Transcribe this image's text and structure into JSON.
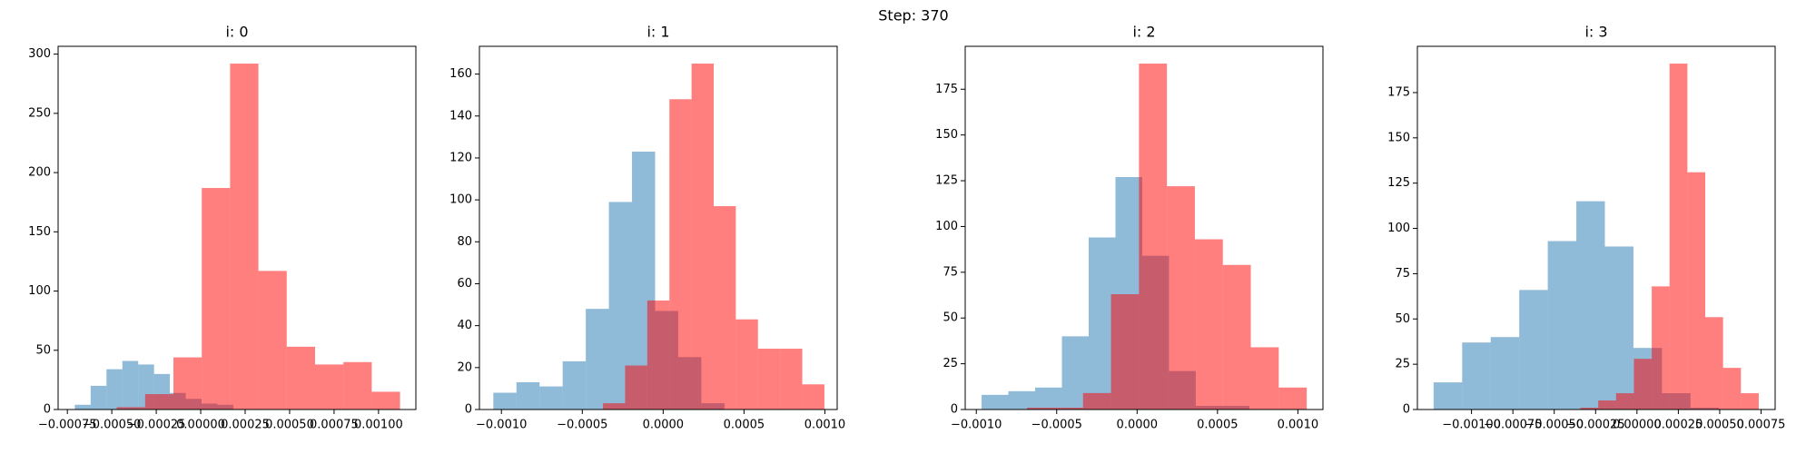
{
  "title": "Step: 370",
  "chart_data": [
    {
      "type": "histogram",
      "title": "i: 0",
      "alpha": 0.5,
      "series": [
        {
          "color": "#1f77b4",
          "bins": [
            -0.000708,
            -0.0006189,
            -0.0005298,
            -0.0004407,
            -0.0003516,
            -0.0002625,
            -0.0001734,
            -8.43e-05,
            4.8e-06,
            9.39e-05,
            0.000183
          ],
          "values": [
            4,
            20,
            34,
            41,
            38,
            30,
            14,
            9,
            5,
            4
          ]
        },
        {
          "color": "red",
          "bins": [
            -0.000472,
            -0.0003127,
            -0.0001534,
            5.9e-06,
            0.0001652,
            0.0003245,
            0.0004838,
            0.0006431,
            0.0008024,
            0.0009617,
            0.001121
          ],
          "values": [
            2,
            13,
            44,
            187,
            292,
            117,
            53,
            38,
            40,
            15
          ]
        }
      ],
      "xlim": [
        -0.000802,
        0.00121
      ],
      "xticks": [
        {
          "value": -0.00075,
          "label": "−0.00075"
        },
        {
          "value": -0.0005,
          "label": "−0.00050"
        },
        {
          "value": -0.00025,
          "label": "−0.00025"
        },
        {
          "value": 0,
          "label": "0.00000"
        },
        {
          "value": 0.00025,
          "label": "0.00025"
        },
        {
          "value": 0.0005,
          "label": "0.00050"
        },
        {
          "value": 0.00075,
          "label": "0.00075"
        },
        {
          "value": 0.001,
          "label": "0.00100"
        }
      ],
      "ylim": [
        0,
        306.6
      ],
      "yticks": [
        0,
        50,
        100,
        150,
        200,
        250,
        300
      ]
    },
    {
      "type": "histogram",
      "title": "i: 1",
      "alpha": 0.5,
      "series": [
        {
          "color": "#1f77b4",
          "bins": [
            -0.00105,
            -0.0009071,
            -0.0007642,
            -0.0006213,
            -0.0004784,
            -0.0003355,
            -0.0001926,
            -4.97e-05,
            9.32e-05,
            0.0002361,
            0.000379
          ],
          "values": [
            8,
            13,
            11,
            23,
            48,
            99,
            123,
            47,
            25,
            3
          ]
        },
        {
          "color": "red",
          "bins": [
            -0.000372,
            -0.0002351,
            -9.82e-05,
            3.87e-05,
            0.0001756,
            0.0003125,
            0.0004494,
            0.0005863,
            0.0007232,
            0.0008601,
            0.000997
          ],
          "values": [
            3,
            21,
            52,
            148,
            165,
            97,
            43,
            29,
            29,
            12
          ]
        }
      ],
      "xlim": [
        -0.001136,
        0.001076
      ],
      "xticks": [
        {
          "value": -0.001,
          "label": "−0.0010"
        },
        {
          "value": -0.0005,
          "label": "−0.0005"
        },
        {
          "value": 0,
          "label": "0.0000"
        },
        {
          "value": 0.0005,
          "label": "0.0005"
        },
        {
          "value": 0.001,
          "label": "0.0010"
        }
      ],
      "ylim": [
        0,
        173.25
      ],
      "yticks": [
        0,
        20,
        40,
        60,
        80,
        100,
        120,
        140,
        160
      ]
    },
    {
      "type": "histogram",
      "title": "i: 2",
      "alpha": 0.5,
      "series": [
        {
          "color": "#1f77b4",
          "bins": [
            -0.000967,
            -0.0008005,
            -0.000634,
            -0.0004675,
            -0.000301,
            -0.0001345,
            3.2e-05,
            0.0001985,
            0.000365,
            0.0005315,
            0.000698
          ],
          "values": [
            8,
            10,
            12,
            40,
            94,
            127,
            84,
            21,
            2,
            2
          ]
        },
        {
          "color": "red",
          "bins": [
            -0.000684,
            -0.0005101,
            -0.0003362,
            -0.0001623,
            1.16e-05,
            0.0001855,
            0.0003594,
            0.0005333,
            0.0007072,
            0.0008811,
            0.001055
          ],
          "values": [
            1,
            1,
            9,
            63,
            189,
            122,
            93,
            79,
            34,
            12
          ]
        }
      ],
      "xlim": [
        -0.001069,
        0.001156
      ],
      "xticks": [
        {
          "value": -0.001,
          "label": "−0.0010"
        },
        {
          "value": -0.0005,
          "label": "−0.0005"
        },
        {
          "value": 0,
          "label": "0.0000"
        },
        {
          "value": 0.0005,
          "label": "0.0005"
        },
        {
          "value": 0.001,
          "label": "0.0010"
        }
      ],
      "ylim": [
        0,
        198.45
      ],
      "yticks": [
        0,
        25,
        50,
        75,
        100,
        125,
        150,
        175
      ]
    },
    {
      "type": "histogram",
      "title": "i: 3",
      "alpha": 0.5,
      "series": [
        {
          "color": "#1f77b4",
          "bins": [
            -0.001229,
            -0.0010565,
            -0.000884,
            -0.0007115,
            -0.000539,
            -0.0003665,
            -0.000194,
            -2.15e-05,
            0.000151,
            0.0003235,
            0.000496
          ],
          "values": [
            15,
            37,
            40,
            66,
            93,
            115,
            90,
            34,
            9,
            1
          ]
        },
        {
          "color": "red",
          "bins": [
            -0.000342,
            -0.0002342,
            -0.0001264,
            -1.86e-05,
            8.92e-05,
            0.000197,
            0.0003048,
            0.0004126,
            0.0005204,
            0.0006282,
            0.000736
          ],
          "values": [
            1,
            5,
            9,
            28,
            68,
            191,
            131,
            51,
            23,
            9
          ]
        }
      ],
      "xlim": [
        -0.001327,
        0.000835
      ],
      "xticks": [
        {
          "value": -0.001,
          "label": "−0.00100"
        },
        {
          "value": -0.00075,
          "label": "−0.00075"
        },
        {
          "value": -0.0005,
          "label": "−0.00050"
        },
        {
          "value": -0.00025,
          "label": "−0.00025"
        },
        {
          "value": 0,
          "label": "0.00000"
        },
        {
          "value": 0.00025,
          "label": "0.00025"
        },
        {
          "value": 0.0005,
          "label": "0.00050"
        },
        {
          "value": 0.00075,
          "label": "0.00075"
        }
      ],
      "ylim": [
        0,
        200.55
      ],
      "yticks": [
        0,
        25,
        50,
        75,
        100,
        125,
        150,
        175
      ]
    }
  ]
}
